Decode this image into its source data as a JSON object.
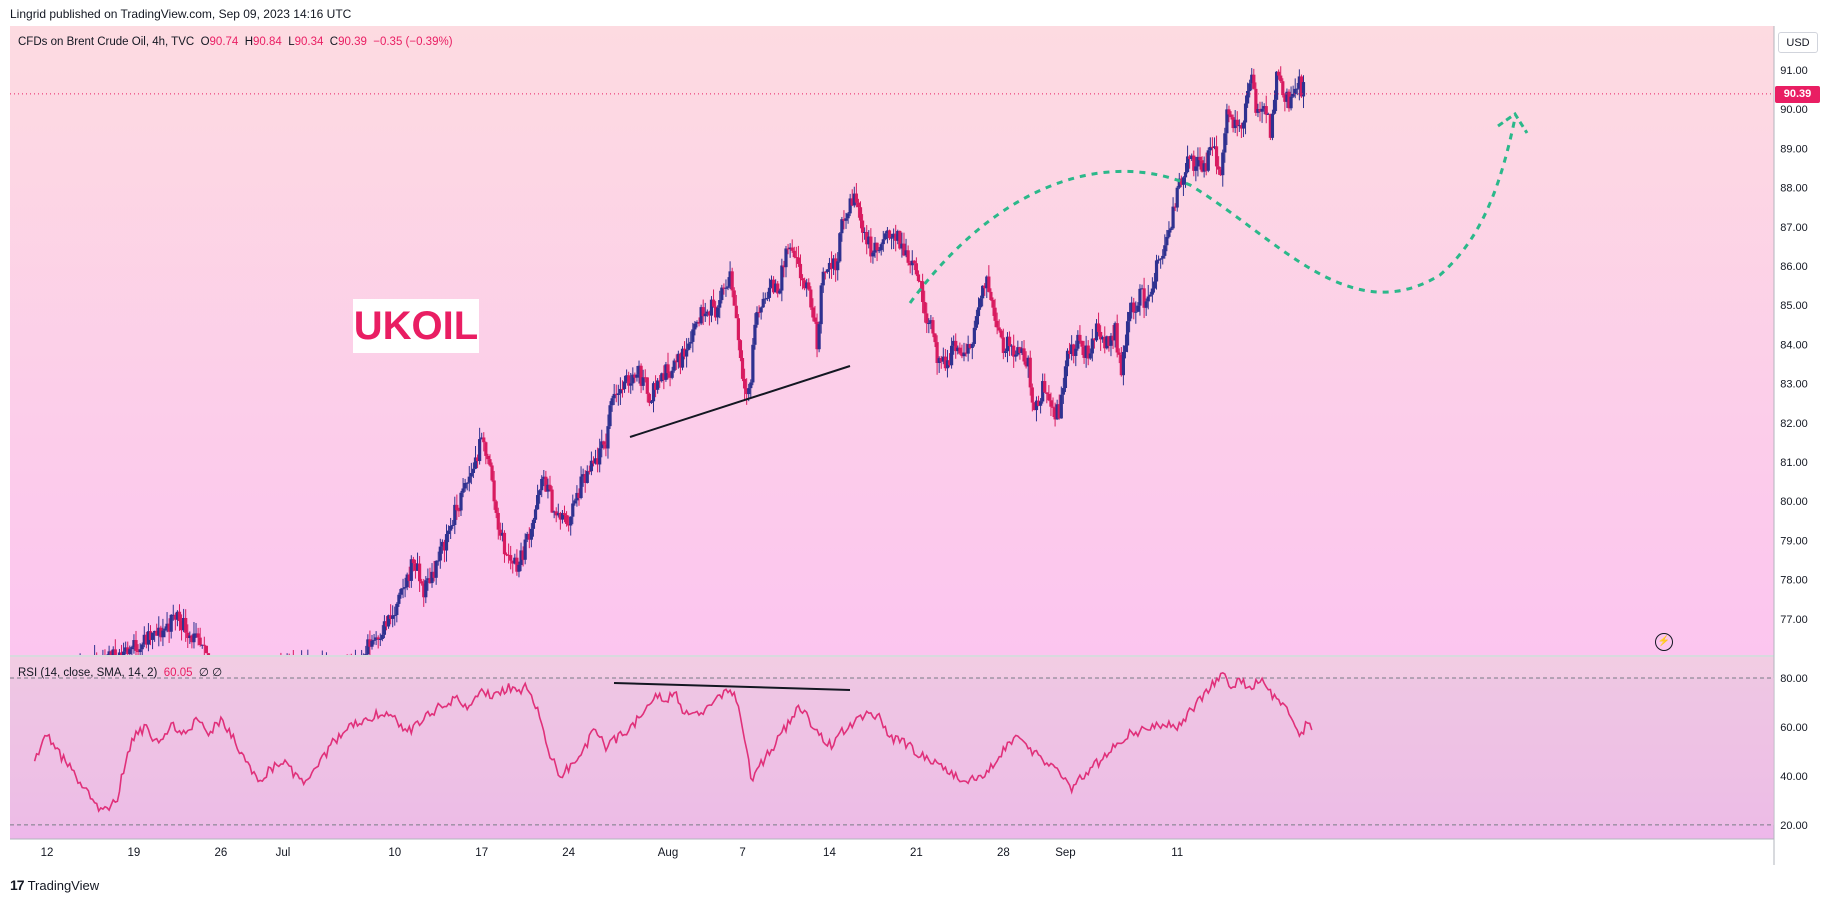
{
  "header": {
    "publisher_line": "Lingrid published on TradingView.com, Sep 09, 2023 14:16 UTC"
  },
  "legend": {
    "symbol": "CFDs on Brent Crude Oil, 4h, TVC",
    "open_label": "O",
    "open": "90.74",
    "high_label": "H",
    "high": "90.84",
    "low_label": "L",
    "low": "90.34",
    "close_label": "C",
    "close": "90.39",
    "change": "−0.35 (−0.39%)"
  },
  "currency_button": "USD",
  "last_price_badge": "90.39",
  "annotation_label": "UKOIL",
  "rsi_legend": {
    "name": "RSI (14, close, SMA, 14, 2)",
    "value": "60.05",
    "extra": "∅ ∅"
  },
  "footer": {
    "logo_mark": "17",
    "logo_text": "TradingView"
  },
  "colors": {
    "bull": "#2f3190",
    "bear": "#d81b60",
    "rsi_line": "#e0307a",
    "curve": "#2bb88a",
    "accent": "#e91e63"
  },
  "chart_data": [
    {
      "type": "candlestick",
      "title": "CFDs on Brent Crude Oil, 4h, TVC",
      "price_scale": {
        "min": 76.0,
        "max": 91.7,
        "ticks": [
          "91.00",
          "90.00",
          "89.00",
          "88.00",
          "87.00",
          "86.00",
          "85.00",
          "84.00",
          "83.00",
          "82.00",
          "81.00",
          "80.00",
          "79.00",
          "78.00",
          "77.00"
        ]
      },
      "last_price": 90.39,
      "time_axis_labels": [
        {
          "label": "12",
          "day": 0
        },
        {
          "label": "19",
          "day": 7
        },
        {
          "label": "26",
          "day": 14
        },
        {
          "label": "Jul",
          "day": 19
        },
        {
          "label": "10",
          "day": 28
        },
        {
          "label": "17",
          "day": 35
        },
        {
          "label": "24",
          "day": 42
        },
        {
          "label": "Aug",
          "day": 50
        },
        {
          "label": "7",
          "day": 56
        },
        {
          "label": "14",
          "day": 63
        },
        {
          "label": "21",
          "day": 70
        },
        {
          "label": "28",
          "day": 77
        },
        {
          "label": "Sep",
          "day": 82
        },
        {
          "label": "11",
          "day": 91
        }
      ],
      "anchors": [
        [
          -1,
          75.6
        ],
        [
          2,
          75.5
        ],
        [
          7,
          76.3
        ],
        [
          9,
          76.6
        ],
        [
          10.5,
          77.1
        ],
        [
          12,
          76.4
        ],
        [
          14,
          75.4
        ],
        [
          21,
          75.8
        ],
        [
          25,
          75.7
        ],
        [
          26,
          76.4
        ],
        [
          28,
          77.1
        ],
        [
          29.5,
          78.5
        ],
        [
          30.3,
          77.7
        ],
        [
          31.5,
          78.5
        ],
        [
          32.5,
          79.4
        ],
        [
          34,
          80.6
        ],
        [
          35,
          81.5
        ],
        [
          35.5,
          81.2
        ],
        [
          36.2,
          79.6
        ],
        [
          37,
          78.6
        ],
        [
          38,
          78.4
        ],
        [
          39,
          79.4
        ],
        [
          40,
          80.6
        ],
        [
          41,
          79.6
        ],
        [
          42,
          79.5
        ],
        [
          43,
          80.4
        ],
        [
          44,
          80.9
        ],
        [
          45,
          81.5
        ],
        [
          45.5,
          82.8
        ],
        [
          46.5,
          82.9
        ],
        [
          47.5,
          83.4
        ],
        [
          48.5,
          82.7
        ],
        [
          49.5,
          83.2
        ],
        [
          51,
          83.6
        ],
        [
          52,
          84.4
        ],
        [
          53,
          85.0
        ],
        [
          54,
          84.9
        ],
        [
          55,
          85.8
        ],
        [
          55.5,
          84.7
        ],
        [
          56,
          83.2
        ],
        [
          56.6,
          82.8
        ],
        [
          57,
          84.6
        ],
        [
          58,
          85.4
        ],
        [
          59,
          85.5
        ],
        [
          59.6,
          86.5
        ],
        [
          60.5,
          85.9
        ],
        [
          61.5,
          85.1
        ],
        [
          62,
          84.0
        ],
        [
          62.5,
          86.0
        ],
        [
          63.5,
          86.0
        ],
        [
          64,
          87.0
        ],
        [
          65,
          87.8
        ],
        [
          65.6,
          87.1
        ],
        [
          66.3,
          86.4
        ],
        [
          67,
          86.4
        ],
        [
          68,
          86.9
        ],
        [
          69,
          86.4
        ],
        [
          70,
          86.0
        ],
        [
          70.6,
          84.9
        ],
        [
          71.2,
          84.6
        ],
        [
          71.8,
          83.4
        ],
        [
          72.5,
          83.5
        ],
        [
          73,
          84.0
        ],
        [
          74,
          83.6
        ],
        [
          75,
          84.9
        ],
        [
          75.6,
          85.6
        ],
        [
          76.2,
          85.0
        ],
        [
          77,
          84.0
        ],
        [
          78,
          83.9
        ],
        [
          79,
          83.5
        ],
        [
          79.5,
          82.2
        ],
        [
          80.3,
          83.0
        ],
        [
          81,
          82.4
        ],
        [
          81.5,
          82.2
        ],
        [
          82,
          83.6
        ],
        [
          83,
          84.0
        ],
        [
          84,
          83.7
        ],
        [
          84.5,
          84.6
        ],
        [
          85,
          84.0
        ],
        [
          86,
          84.3
        ],
        [
          86.5,
          83.4
        ],
        [
          87,
          84.6
        ],
        [
          88,
          85.3
        ],
        [
          88.6,
          85.0
        ],
        [
          89,
          85.6
        ],
        [
          90,
          86.5
        ],
        [
          90.5,
          86.9
        ],
        [
          91,
          88.0
        ],
        [
          91.5,
          88.4
        ],
        [
          92,
          88.7
        ],
        [
          93,
          88.5
        ],
        [
          94,
          89.0
        ],
        [
          94.5,
          88.3
        ],
        [
          95,
          90.0
        ],
        [
          96,
          89.4
        ],
        [
          97,
          90.8
        ],
        [
          97.4,
          89.7
        ],
        [
          98,
          90.3
        ],
        [
          98.5,
          89.4
        ],
        [
          99,
          90.9
        ],
        [
          100,
          90.2
        ],
        [
          100.8,
          90.6
        ],
        [
          101.3,
          90.39
        ]
      ]
    },
    {
      "type": "line",
      "title": "RSI (14, close, SMA, 14, 2)",
      "value_scale": {
        "ticks": [
          "80.00",
          "60.00",
          "40.00",
          "20.00"
        ],
        "bands": [
          80,
          20
        ]
      },
      "last_value": 60.05,
      "anchors": [
        [
          -1,
          48
        ],
        [
          0,
          56
        ],
        [
          1,
          49
        ],
        [
          2,
          42
        ],
        [
          3,
          35
        ],
        [
          4,
          28
        ],
        [
          4.8,
          25
        ],
        [
          5.6,
          30
        ],
        [
          6.3,
          45
        ],
        [
          7,
          56
        ],
        [
          8,
          60
        ],
        [
          9,
          52
        ],
        [
          10,
          61
        ],
        [
          11,
          57
        ],
        [
          12,
          62
        ],
        [
          13,
          58
        ],
        [
          14,
          62
        ],
        [
          15,
          55
        ],
        [
          16,
          46
        ],
        [
          17,
          38
        ],
        [
          18,
          43
        ],
        [
          19,
          46
        ],
        [
          20,
          40
        ],
        [
          21,
          37
        ],
        [
          22,
          45
        ],
        [
          23,
          54
        ],
        [
          24,
          58
        ],
        [
          25,
          62
        ],
        [
          26,
          64
        ],
        [
          27,
          66
        ],
        [
          28,
          63
        ],
        [
          29,
          58
        ],
        [
          30,
          62
        ],
        [
          31,
          66
        ],
        [
          32,
          70
        ],
        [
          33,
          71
        ],
        [
          34,
          68
        ],
        [
          35,
          74
        ],
        [
          36,
          72
        ],
        [
          37,
          76
        ],
        [
          38,
          75
        ],
        [
          38.6,
          77
        ],
        [
          39,
          73
        ],
        [
          39.8,
          62
        ],
        [
          40.5,
          48
        ],
        [
          41.4,
          40
        ],
        [
          42.3,
          45
        ],
        [
          43.2,
          51
        ],
        [
          44,
          58
        ],
        [
          45,
          52
        ],
        [
          46,
          56
        ],
        [
          47,
          60
        ],
        [
          48,
          65
        ],
        [
          49,
          73
        ],
        [
          50,
          72
        ],
        [
          50.5,
          75
        ],
        [
          51,
          68
        ],
        [
          52,
          64
        ],
        [
          53,
          66
        ],
        [
          54,
          72
        ],
        [
          55,
          76
        ],
        [
          55.5,
          72
        ],
        [
          56,
          58
        ],
        [
          56.8,
          37
        ],
        [
          57.5,
          45
        ],
        [
          58.5,
          52
        ],
        [
          59.5,
          60
        ],
        [
          60.5,
          68
        ],
        [
          61.5,
          62
        ],
        [
          62.5,
          55
        ],
        [
          63.3,
          52
        ],
        [
          64,
          58
        ],
        [
          65,
          62
        ],
        [
          66,
          66
        ],
        [
          67,
          64
        ],
        [
          68,
          55
        ],
        [
          69,
          54
        ],
        [
          70,
          50
        ],
        [
          71,
          47
        ],
        [
          72,
          44
        ],
        [
          73,
          40
        ],
        [
          74,
          38
        ],
        [
          75,
          40
        ],
        [
          76,
          43
        ],
        [
          77,
          50
        ],
        [
          78,
          56
        ],
        [
          79,
          52
        ],
        [
          80,
          47
        ],
        [
          81,
          44
        ],
        [
          82,
          40
        ],
        [
          82.5,
          35
        ],
        [
          83,
          38
        ],
        [
          84,
          43
        ],
        [
          85,
          47
        ],
        [
          86,
          52
        ],
        [
          87,
          57
        ],
        [
          88,
          58
        ],
        [
          89,
          60
        ],
        [
          90,
          62
        ],
        [
          91,
          60
        ],
        [
          92,
          66
        ],
        [
          93,
          72
        ],
        [
          94,
          78
        ],
        [
          94.7,
          81
        ],
        [
          95.5,
          76
        ],
        [
          96,
          79
        ],
        [
          97,
          75
        ],
        [
          97.6,
          80
        ],
        [
          98.3,
          74
        ],
        [
          99,
          72
        ],
        [
          100,
          65
        ],
        [
          100.8,
          56
        ],
        [
          101.5,
          62
        ],
        [
          102,
          60
        ]
      ]
    }
  ]
}
